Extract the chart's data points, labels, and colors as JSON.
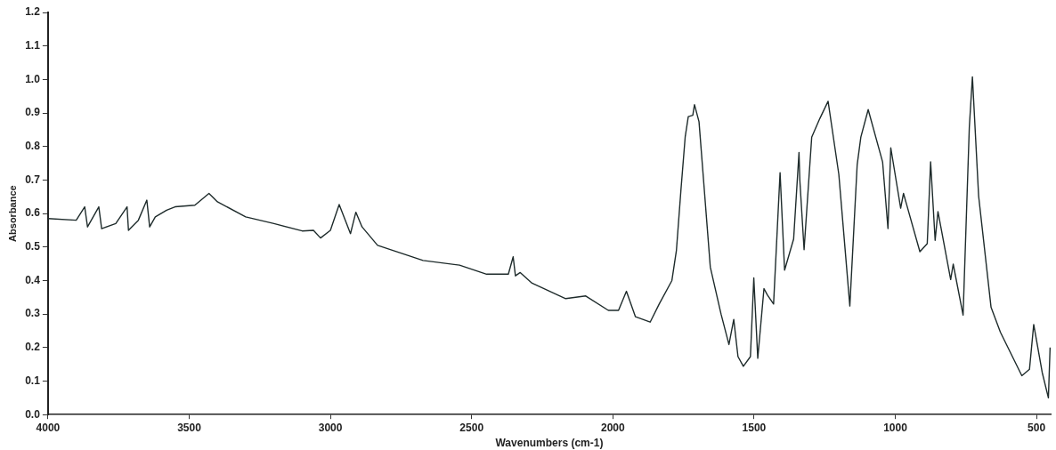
{
  "chart_data": {
    "type": "line",
    "xlabel": "Wavenumbers (cm-1)",
    "ylabel": "Absorbance",
    "xlim": [
      4000,
      450
    ],
    "ylim": [
      0,
      1.2
    ],
    "xticks": [
      4000,
      3500,
      3000,
      2500,
      2000,
      1500,
      1000,
      500
    ],
    "yticks": [
      {
        "value": 0,
        "label": "0.0"
      },
      {
        "value": 0.1,
        "label": "0.1"
      },
      {
        "value": 0.2,
        "label": "0.2"
      },
      {
        "value": 0.3,
        "label": "0.3"
      },
      {
        "value": 0.4,
        "label": "0.4"
      },
      {
        "value": 0.5,
        "label": "0.5"
      },
      {
        "value": 0.6,
        "label": "0.6"
      },
      {
        "value": 0.7,
        "label": "0.7"
      },
      {
        "value": 0.8,
        "label": "0.8"
      },
      {
        "value": 0.9,
        "label": "0.9"
      },
      {
        "value": 1,
        "label": "1.0"
      },
      {
        "value": 1.1,
        "label": "1.1"
      },
      {
        "value": 1.2,
        "label": "1.2"
      }
    ],
    "grid": false,
    "legend": false,
    "marker": "none",
    "line_style": "solid",
    "series": [
      {
        "color": "#1e2b2b",
        "x": [
          4000,
          3900,
          3870,
          3860,
          3820,
          3810,
          3760,
          3720,
          3715,
          3680,
          3650,
          3640,
          3620,
          3580,
          3550,
          3480,
          3430,
          3400,
          3300,
          3200,
          3100,
          3060,
          3035,
          3000,
          2969,
          2929,
          2910,
          2888,
          2833,
          2672,
          2543,
          2447,
          2370,
          2353,
          2345,
          2328,
          2286,
          2167,
          2096,
          2016,
          1980,
          1952,
          1920,
          1868,
          1836,
          1791,
          1775,
          1759,
          1744,
          1733,
          1717,
          1711,
          1695,
          1678,
          1655,
          1617,
          1589,
          1572,
          1557,
          1538,
          1513,
          1501,
          1487,
          1465,
          1453,
          1431,
          1408,
          1392,
          1360,
          1341,
          1338,
          1323,
          1296,
          1267,
          1238,
          1200,
          1161,
          1135,
          1122,
          1096,
          1045,
          1026,
          1016,
          981,
          971,
          913,
          887,
          875,
          859,
          849,
          804,
          795,
          760,
          738,
          727,
          705,
          661,
          628,
          552,
          525,
          510,
          480,
          458,
          452
        ],
        "values": [
          0.585,
          0.58,
          0.62,
          0.56,
          0.62,
          0.555,
          0.57,
          0.62,
          0.55,
          0.58,
          0.64,
          0.56,
          0.59,
          0.61,
          0.62,
          0.625,
          0.66,
          0.635,
          0.59,
          0.57,
          0.548,
          0.55,
          0.527,
          0.55,
          0.627,
          0.54,
          0.604,
          0.56,
          0.505,
          0.46,
          0.446,
          0.419,
          0.419,
          0.471,
          0.414,
          0.424,
          0.392,
          0.346,
          0.354,
          0.311,
          0.311,
          0.368,
          0.292,
          0.276,
          0.33,
          0.4,
          0.49,
          0.67,
          0.828,
          0.889,
          0.893,
          0.925,
          0.874,
          0.69,
          0.44,
          0.3,
          0.209,
          0.284,
          0.173,
          0.144,
          0.173,
          0.408,
          0.168,
          0.376,
          0.357,
          0.33,
          0.722,
          0.431,
          0.524,
          0.782,
          0.699,
          0.492,
          0.828,
          0.884,
          0.935,
          0.717,
          0.324,
          0.746,
          0.828,
          0.91,
          0.754,
          0.555,
          0.796,
          0.616,
          0.66,
          0.486,
          0.51,
          0.754,
          0.52,
          0.606,
          0.403,
          0.449,
          0.297,
          0.857,
          1.008,
          0.652,
          0.32,
          0.246,
          0.116,
          0.135,
          0.269,
          0.126,
          0.05,
          0.2
        ]
      }
    ]
  }
}
